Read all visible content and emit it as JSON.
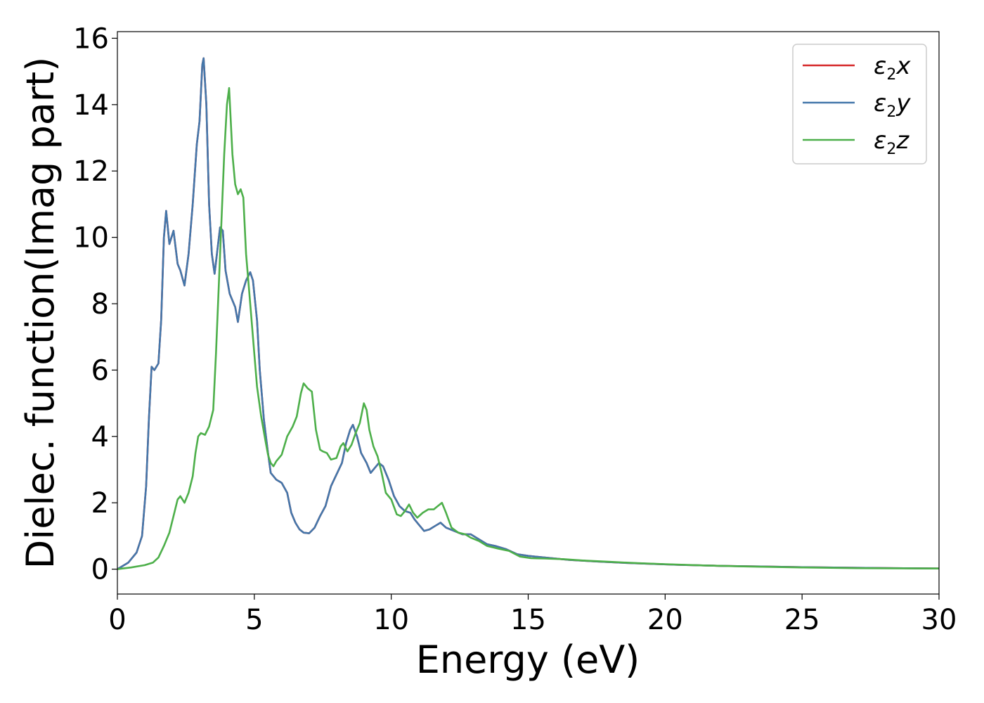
{
  "chart_data": {
    "type": "line",
    "xlabel": "Energy (eV)",
    "ylabel": "Dielec. function(Imag part)",
    "xlim": [
      0,
      30
    ],
    "ylim": [
      -0.75,
      16.2
    ],
    "xticks": [
      0,
      5,
      10,
      15,
      20,
      25,
      30
    ],
    "yticks": [
      0,
      2,
      4,
      6,
      8,
      10,
      12,
      14,
      16
    ],
    "grid": false,
    "legend_position": "top-right",
    "series": [
      {
        "name": "ε2x",
        "legend_base": "ε",
        "legend_sub": "2",
        "legend_tail": "x",
        "color": "#d62728",
        "points": [
          [
            0,
            0
          ],
          [
            0.4,
            0.2
          ],
          [
            0.7,
            0.5
          ],
          [
            0.9,
            1.0
          ],
          [
            1.05,
            2.5
          ],
          [
            1.15,
            4.5
          ],
          [
            1.25,
            6.1
          ],
          [
            1.35,
            6.0
          ],
          [
            1.5,
            6.2
          ],
          [
            1.6,
            7.5
          ],
          [
            1.7,
            10.0
          ],
          [
            1.78,
            10.8
          ],
          [
            1.9,
            9.8
          ],
          [
            2.05,
            10.2
          ],
          [
            2.2,
            9.2
          ],
          [
            2.3,
            9.0
          ],
          [
            2.45,
            8.55
          ],
          [
            2.6,
            9.5
          ],
          [
            2.75,
            11.0
          ],
          [
            2.9,
            12.8
          ],
          [
            3.0,
            13.5
          ],
          [
            3.1,
            15.2
          ],
          [
            3.15,
            15.4
          ],
          [
            3.25,
            14.0
          ],
          [
            3.35,
            11.0
          ],
          [
            3.45,
            9.5
          ],
          [
            3.55,
            8.9
          ],
          [
            3.65,
            9.6
          ],
          [
            3.75,
            10.3
          ],
          [
            3.85,
            10.2
          ],
          [
            3.95,
            9.0
          ],
          [
            4.1,
            8.3
          ],
          [
            4.3,
            7.9
          ],
          [
            4.4,
            7.45
          ],
          [
            4.55,
            8.3
          ],
          [
            4.7,
            8.7
          ],
          [
            4.85,
            8.95
          ],
          [
            4.95,
            8.7
          ],
          [
            5.1,
            7.5
          ],
          [
            5.2,
            6.0
          ],
          [
            5.35,
            4.5
          ],
          [
            5.5,
            3.5
          ],
          [
            5.6,
            2.9
          ],
          [
            5.8,
            2.7
          ],
          [
            6.0,
            2.6
          ],
          [
            6.2,
            2.3
          ],
          [
            6.35,
            1.7
          ],
          [
            6.5,
            1.4
          ],
          [
            6.65,
            1.2
          ],
          [
            6.8,
            1.1
          ],
          [
            7.0,
            1.08
          ],
          [
            7.2,
            1.25
          ],
          [
            7.4,
            1.6
          ],
          [
            7.6,
            1.9
          ],
          [
            7.8,
            2.5
          ],
          [
            8.0,
            2.85
          ],
          [
            8.2,
            3.2
          ],
          [
            8.35,
            3.8
          ],
          [
            8.5,
            4.2
          ],
          [
            8.6,
            4.35
          ],
          [
            8.75,
            4.0
          ],
          [
            8.9,
            3.5
          ],
          [
            9.1,
            3.2
          ],
          [
            9.25,
            2.9
          ],
          [
            9.4,
            3.05
          ],
          [
            9.55,
            3.2
          ],
          [
            9.7,
            3.1
          ],
          [
            9.9,
            2.7
          ],
          [
            10.1,
            2.2
          ],
          [
            10.3,
            1.9
          ],
          [
            10.5,
            1.75
          ],
          [
            10.7,
            1.7
          ],
          [
            10.85,
            1.5
          ],
          [
            11.0,
            1.35
          ],
          [
            11.2,
            1.15
          ],
          [
            11.4,
            1.2
          ],
          [
            11.6,
            1.3
          ],
          [
            11.8,
            1.4
          ],
          [
            12.0,
            1.25
          ],
          [
            12.3,
            1.15
          ],
          [
            12.6,
            1.05
          ],
          [
            12.9,
            1.05
          ],
          [
            13.2,
            0.9
          ],
          [
            13.5,
            0.75
          ],
          [
            13.8,
            0.7
          ],
          [
            14.2,
            0.6
          ],
          [
            14.6,
            0.45
          ],
          [
            15.0,
            0.4
          ],
          [
            15.6,
            0.35
          ],
          [
            16.5,
            0.28
          ],
          [
            17.5,
            0.23
          ],
          [
            18.5,
            0.19
          ],
          [
            19.5,
            0.16
          ],
          [
            20.5,
            0.13
          ],
          [
            22,
            0.1
          ],
          [
            23.5,
            0.08
          ],
          [
            25,
            0.06
          ],
          [
            27,
            0.04
          ],
          [
            30,
            0.02
          ]
        ]
      },
      {
        "name": "ε2y",
        "legend_base": "ε",
        "legend_sub": "2",
        "legend_tail": "y",
        "color": "#4477aa",
        "points": [
          [
            0,
            0
          ],
          [
            0.4,
            0.2
          ],
          [
            0.7,
            0.5
          ],
          [
            0.9,
            1.0
          ],
          [
            1.05,
            2.5
          ],
          [
            1.15,
            4.5
          ],
          [
            1.25,
            6.1
          ],
          [
            1.35,
            6.0
          ],
          [
            1.5,
            6.2
          ],
          [
            1.6,
            7.5
          ],
          [
            1.7,
            10.0
          ],
          [
            1.78,
            10.8
          ],
          [
            1.9,
            9.8
          ],
          [
            2.05,
            10.2
          ],
          [
            2.2,
            9.2
          ],
          [
            2.3,
            9.0
          ],
          [
            2.45,
            8.55
          ],
          [
            2.6,
            9.5
          ],
          [
            2.75,
            11.0
          ],
          [
            2.9,
            12.8
          ],
          [
            3.0,
            13.5
          ],
          [
            3.1,
            15.2
          ],
          [
            3.15,
            15.4
          ],
          [
            3.25,
            14.0
          ],
          [
            3.35,
            11.0
          ],
          [
            3.45,
            9.5
          ],
          [
            3.55,
            8.9
          ],
          [
            3.65,
            9.6
          ],
          [
            3.75,
            10.3
          ],
          [
            3.85,
            10.2
          ],
          [
            3.95,
            9.0
          ],
          [
            4.1,
            8.3
          ],
          [
            4.3,
            7.9
          ],
          [
            4.4,
            7.45
          ],
          [
            4.55,
            8.3
          ],
          [
            4.7,
            8.7
          ],
          [
            4.85,
            8.95
          ],
          [
            4.95,
            8.7
          ],
          [
            5.1,
            7.5
          ],
          [
            5.2,
            6.0
          ],
          [
            5.35,
            4.5
          ],
          [
            5.5,
            3.5
          ],
          [
            5.6,
            2.9
          ],
          [
            5.8,
            2.7
          ],
          [
            6.0,
            2.6
          ],
          [
            6.2,
            2.3
          ],
          [
            6.35,
            1.7
          ],
          [
            6.5,
            1.4
          ],
          [
            6.65,
            1.2
          ],
          [
            6.8,
            1.1
          ],
          [
            7.0,
            1.08
          ],
          [
            7.2,
            1.25
          ],
          [
            7.4,
            1.6
          ],
          [
            7.6,
            1.9
          ],
          [
            7.8,
            2.5
          ],
          [
            8.0,
            2.85
          ],
          [
            8.2,
            3.2
          ],
          [
            8.35,
            3.8
          ],
          [
            8.5,
            4.2
          ],
          [
            8.6,
            4.35
          ],
          [
            8.75,
            4.0
          ],
          [
            8.9,
            3.5
          ],
          [
            9.1,
            3.2
          ],
          [
            9.25,
            2.9
          ],
          [
            9.4,
            3.05
          ],
          [
            9.55,
            3.2
          ],
          [
            9.7,
            3.1
          ],
          [
            9.9,
            2.7
          ],
          [
            10.1,
            2.2
          ],
          [
            10.3,
            1.9
          ],
          [
            10.5,
            1.75
          ],
          [
            10.7,
            1.7
          ],
          [
            10.85,
            1.5
          ],
          [
            11.0,
            1.35
          ],
          [
            11.2,
            1.15
          ],
          [
            11.4,
            1.2
          ],
          [
            11.6,
            1.3
          ],
          [
            11.8,
            1.4
          ],
          [
            12.0,
            1.25
          ],
          [
            12.3,
            1.15
          ],
          [
            12.6,
            1.05
          ],
          [
            12.9,
            1.05
          ],
          [
            13.2,
            0.9
          ],
          [
            13.5,
            0.75
          ],
          [
            13.8,
            0.7
          ],
          [
            14.2,
            0.6
          ],
          [
            14.6,
            0.45
          ],
          [
            15.0,
            0.4
          ],
          [
            15.6,
            0.35
          ],
          [
            16.5,
            0.28
          ],
          [
            17.5,
            0.23
          ],
          [
            18.5,
            0.19
          ],
          [
            19.5,
            0.16
          ],
          [
            20.5,
            0.13
          ],
          [
            22,
            0.1
          ],
          [
            23.5,
            0.08
          ],
          [
            25,
            0.06
          ],
          [
            27,
            0.04
          ],
          [
            30,
            0.02
          ]
        ]
      },
      {
        "name": "ε2z",
        "legend_base": "ε",
        "legend_sub": "2",
        "legend_tail": "z",
        "color": "#4daf4a",
        "points": [
          [
            0,
            0
          ],
          [
            0.5,
            0.05
          ],
          [
            1.0,
            0.12
          ],
          [
            1.3,
            0.2
          ],
          [
            1.5,
            0.35
          ],
          [
            1.7,
            0.7
          ],
          [
            1.9,
            1.1
          ],
          [
            2.05,
            1.6
          ],
          [
            2.2,
            2.1
          ],
          [
            2.3,
            2.2
          ],
          [
            2.45,
            2.0
          ],
          [
            2.6,
            2.3
          ],
          [
            2.75,
            2.8
          ],
          [
            2.85,
            3.5
          ],
          [
            2.95,
            4.0
          ],
          [
            3.05,
            4.1
          ],
          [
            3.2,
            4.05
          ],
          [
            3.35,
            4.3
          ],
          [
            3.5,
            4.8
          ],
          [
            3.6,
            6.5
          ],
          [
            3.7,
            8.5
          ],
          [
            3.8,
            10.5
          ],
          [
            3.9,
            12.5
          ],
          [
            4.0,
            14.0
          ],
          [
            4.08,
            14.5
          ],
          [
            4.2,
            12.5
          ],
          [
            4.3,
            11.6
          ],
          [
            4.4,
            11.3
          ],
          [
            4.5,
            11.45
          ],
          [
            4.6,
            11.2
          ],
          [
            4.7,
            9.5
          ],
          [
            4.85,
            8.0
          ],
          [
            5.0,
            6.5
          ],
          [
            5.1,
            5.5
          ],
          [
            5.25,
            4.6
          ],
          [
            5.4,
            3.9
          ],
          [
            5.5,
            3.45
          ],
          [
            5.6,
            3.2
          ],
          [
            5.7,
            3.1
          ],
          [
            5.8,
            3.25
          ],
          [
            6.0,
            3.45
          ],
          [
            6.2,
            4.0
          ],
          [
            6.4,
            4.3
          ],
          [
            6.55,
            4.6
          ],
          [
            6.7,
            5.3
          ],
          [
            6.8,
            5.6
          ],
          [
            6.95,
            5.45
          ],
          [
            7.1,
            5.35
          ],
          [
            7.25,
            4.2
          ],
          [
            7.4,
            3.6
          ],
          [
            7.5,
            3.55
          ],
          [
            7.65,
            3.5
          ],
          [
            7.8,
            3.3
          ],
          [
            8.0,
            3.35
          ],
          [
            8.15,
            3.7
          ],
          [
            8.25,
            3.8
          ],
          [
            8.4,
            3.55
          ],
          [
            8.55,
            3.75
          ],
          [
            8.7,
            4.1
          ],
          [
            8.85,
            4.4
          ],
          [
            9.0,
            5.0
          ],
          [
            9.1,
            4.8
          ],
          [
            9.2,
            4.2
          ],
          [
            9.35,
            3.7
          ],
          [
            9.5,
            3.4
          ],
          [
            9.65,
            2.9
          ],
          [
            9.8,
            2.3
          ],
          [
            10.0,
            2.1
          ],
          [
            10.2,
            1.65
          ],
          [
            10.35,
            1.6
          ],
          [
            10.5,
            1.75
          ],
          [
            10.65,
            1.95
          ],
          [
            10.8,
            1.7
          ],
          [
            10.95,
            1.55
          ],
          [
            11.15,
            1.7
          ],
          [
            11.35,
            1.8
          ],
          [
            11.55,
            1.8
          ],
          [
            11.7,
            1.9
          ],
          [
            11.85,
            2.0
          ],
          [
            12.0,
            1.7
          ],
          [
            12.2,
            1.25
          ],
          [
            12.45,
            1.1
          ],
          [
            12.7,
            1.05
          ],
          [
            12.9,
            0.95
          ],
          [
            13.2,
            0.85
          ],
          [
            13.5,
            0.7
          ],
          [
            13.9,
            0.62
          ],
          [
            14.3,
            0.55
          ],
          [
            14.7,
            0.38
          ],
          [
            15.1,
            0.33
          ],
          [
            15.6,
            0.32
          ],
          [
            16.3,
            0.3
          ],
          [
            17.0,
            0.26
          ],
          [
            18.0,
            0.22
          ],
          [
            19.0,
            0.18
          ],
          [
            20.0,
            0.15
          ],
          [
            21.5,
            0.11
          ],
          [
            23,
            0.08
          ],
          [
            25,
            0.05
          ],
          [
            27,
            0.03
          ],
          [
            30,
            0.02
          ]
        ]
      }
    ]
  }
}
